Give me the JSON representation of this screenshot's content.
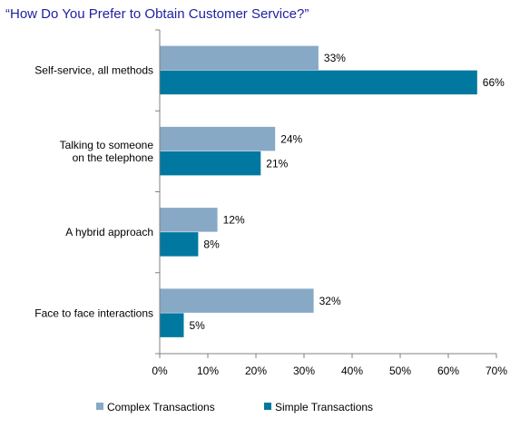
{
  "chart_data": {
    "type": "bar",
    "orientation": "horizontal",
    "title": "“How Do You Prefer to Obtain Customer Service?”",
    "categories": [
      [
        "Self-service, all methods"
      ],
      [
        "Talking to someone",
        "on the telephone"
      ],
      [
        "A hybrid approach"
      ],
      [
        "Face to face interactions"
      ]
    ],
    "series": [
      {
        "name": "Complex Transactions",
        "color": "#87a9c6",
        "values": [
          33,
          24,
          12,
          32
        ]
      },
      {
        "name": "Simple Transactions",
        "color": "#00789f",
        "values": [
          66,
          21,
          8,
          5
        ]
      }
    ],
    "value_format": "percent",
    "xlim": [
      0,
      70
    ],
    "xticks": [
      "0%",
      "10%",
      "20%",
      "30%",
      "40%",
      "50%",
      "60%",
      "70%"
    ],
    "grid": false,
    "legend_position": "bottom"
  }
}
